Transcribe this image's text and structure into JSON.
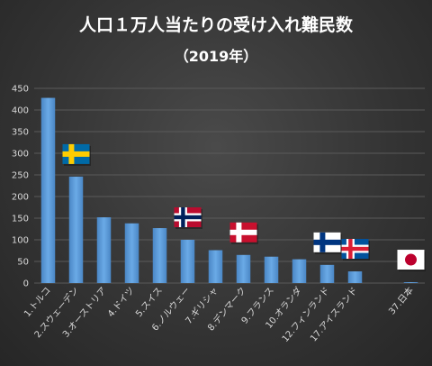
{
  "chart_data": {
    "type": "bar",
    "title": "人口１万人当たりの受け入れ難民数",
    "subtitle": "（2019年）",
    "categories": [
      "1.トルコ",
      "2.スウェーデン",
      "3.オーストリア",
      "4.ドイツ",
      "5.スイス",
      "6.ノルウェー",
      "7.ギリシャ",
      "8.デンマーク",
      "9.フランス",
      "10.オランダ",
      "12.フィンランド",
      "17.アイスランド",
      "",
      "37.日本"
    ],
    "values": [
      428,
      246,
      152,
      138,
      127,
      100,
      76,
      65,
      61,
      55,
      42,
      27,
      null,
      2
    ],
    "yticks": [
      0,
      50,
      100,
      150,
      200,
      250,
      300,
      350,
      400,
      450
    ],
    "ylim": [
      0,
      450
    ],
    "grid": true,
    "bar_color": "#5b9bd5",
    "flags": [
      {
        "category": "2.スウェーデン",
        "icon": "sweden-flag-icon"
      },
      {
        "category": "6.ノルウェー",
        "icon": "norway-flag-icon"
      },
      {
        "category": "8.デンマーク",
        "icon": "denmark-flag-icon"
      },
      {
        "category": "12.フィンランド",
        "icon": "finland-flag-icon"
      },
      {
        "category": "17.アイスランド",
        "icon": "iceland-flag-icon"
      },
      {
        "category": "37.日本",
        "icon": "japan-flag-icon"
      }
    ]
  }
}
